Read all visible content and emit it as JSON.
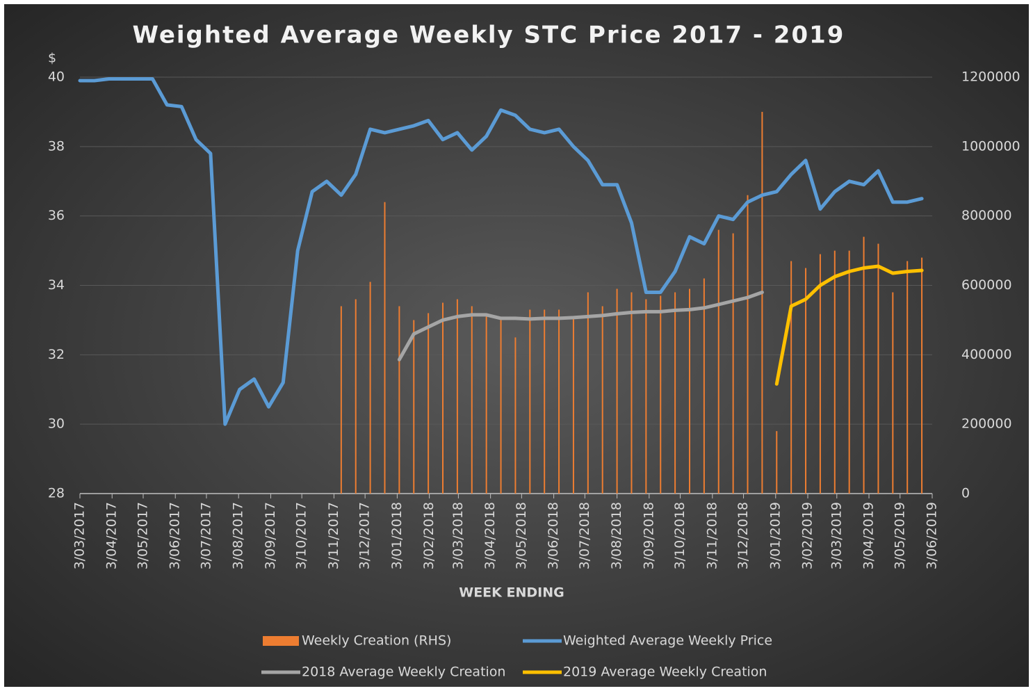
{
  "chart_data": {
    "type": "line",
    "title": "Weighted Average Weekly STC Price 2017 - 2019",
    "y_label": "$",
    "x_label": "WEEK ENDING",
    "x": [
      "3/03/2017",
      "17/03/2017",
      "31/03/2017",
      "14/04/2017",
      "28/04/2017",
      "12/05/2017",
      "26/05/2017",
      "9/06/2017",
      "23/06/2017",
      "7/07/2017",
      "21/07/2017",
      "4/08/2017",
      "18/08/2017",
      "1/09/2017",
      "15/09/2017",
      "29/09/2017",
      "13/10/2017",
      "27/10/2017",
      "10/11/2017",
      "24/11/2017",
      "8/12/2017",
      "22/12/2017",
      "5/01/2018",
      "19/01/2018",
      "2/02/2018",
      "16/02/2018",
      "2/03/2018",
      "16/03/2018",
      "30/03/2018",
      "13/04/2018",
      "27/04/2018",
      "11/05/2018",
      "25/05/2018",
      "8/06/2018",
      "22/06/2018",
      "6/07/2018",
      "20/07/2018",
      "3/08/2018",
      "17/08/2018",
      "31/08/2018",
      "14/09/2018",
      "28/09/2018",
      "12/10/2018",
      "26/10/2018",
      "9/11/2018",
      "23/11/2018",
      "7/12/2018",
      "21/12/2018",
      "4/01/2019",
      "18/01/2019",
      "1/02/2019",
      "15/02/2019",
      "1/03/2019",
      "15/03/2019",
      "29/03/2019",
      "12/04/2019",
      "26/04/2019",
      "10/05/2019",
      "24/05/2019"
    ],
    "xlim": [
      "3/03/2017",
      "3/06/2019"
    ],
    "xticks": [
      "3/03/2017",
      "3/04/2017",
      "3/05/2017",
      "3/06/2017",
      "3/07/2017",
      "3/08/2017",
      "3/09/2017",
      "3/10/2017",
      "3/11/2017",
      "3/12/2017",
      "3/01/2018",
      "3/02/2018",
      "3/03/2018",
      "3/04/2018",
      "3/05/2018",
      "3/06/2018",
      "3/07/2018",
      "3/08/2018",
      "3/09/2018",
      "3/10/2018",
      "3/11/2018",
      "3/12/2018",
      "3/01/2019",
      "3/02/2019",
      "3/03/2019",
      "3/04/2019",
      "3/05/2019",
      "3/06/2019"
    ],
    "ylim": [
      28,
      40
    ],
    "yticks": [
      28,
      30,
      32,
      34,
      36,
      38,
      40
    ],
    "y2lim": [
      0,
      1200000
    ],
    "y2ticks": [
      0,
      200000,
      400000,
      600000,
      800000,
      1000000,
      1200000
    ],
    "grid": true,
    "series": [
      {
        "name": "Weekly Creation (RHS)",
        "type": "bar",
        "axis": "y2",
        "color": "#ed7d31",
        "values": [
          null,
          null,
          null,
          null,
          null,
          null,
          null,
          null,
          null,
          null,
          null,
          null,
          null,
          null,
          null,
          null,
          null,
          null,
          540000,
          560000,
          610000,
          840000,
          540000,
          500000,
          520000,
          550000,
          560000,
          540000,
          510000,
          500000,
          450000,
          530000,
          530000,
          530000,
          510000,
          580000,
          540000,
          590000,
          580000,
          560000,
          570000,
          580000,
          590000,
          620000,
          760000,
          750000,
          860000,
          1100000,
          180000,
          670000,
          650000,
          690000,
          700000,
          700000,
          740000,
          720000,
          580000,
          670000,
          680000
        ]
      },
      {
        "name": "Weighted Average Weekly Price",
        "type": "line",
        "color": "#5b9bd5",
        "values": [
          39.9,
          39.9,
          39.95,
          39.95,
          39.95,
          39.95,
          39.2,
          39.15,
          38.2,
          37.8,
          30.0,
          31.0,
          31.3,
          30.5,
          31.2,
          35.0,
          36.7,
          37.0,
          36.6,
          37.2,
          38.5,
          38.4,
          38.5,
          38.6,
          38.75,
          38.2,
          38.4,
          37.9,
          38.3,
          39.05,
          38.9,
          38.5,
          38.4,
          38.5,
          38.0,
          37.6,
          36.9,
          36.9,
          35.8,
          33.8,
          33.8,
          34.4,
          35.4,
          35.2,
          36.0,
          35.9,
          36.4,
          36.6,
          36.7,
          37.2,
          37.6,
          36.2,
          36.7,
          37.0,
          36.9,
          37.3,
          36.4,
          36.4,
          36.5
        ]
      },
      {
        "name": "2018 Average Weekly Creation",
        "type": "line",
        "axis": "y2",
        "color": "#a5a5a5",
        "values": [
          null,
          null,
          null,
          null,
          null,
          null,
          null,
          null,
          null,
          null,
          null,
          null,
          null,
          null,
          null,
          null,
          null,
          null,
          null,
          null,
          null,
          null,
          386000,
          460000,
          480000,
          500000,
          510000,
          515000,
          515000,
          505000,
          505000,
          503000,
          505000,
          505000,
          507000,
          510000,
          513000,
          518000,
          522000,
          524000,
          524000,
          528000,
          530000,
          535000,
          545000,
          555000,
          565000,
          580000,
          null,
          null,
          null,
          null,
          null,
          null,
          null,
          null,
          null,
          null,
          null
        ]
      },
      {
        "name": "2019 Average Weekly Creation",
        "type": "line",
        "axis": "y2",
        "color": "#ffc000",
        "values": [
          null,
          null,
          null,
          null,
          null,
          null,
          null,
          null,
          null,
          null,
          null,
          null,
          null,
          null,
          null,
          null,
          null,
          null,
          null,
          null,
          null,
          null,
          null,
          null,
          null,
          null,
          null,
          null,
          null,
          null,
          null,
          null,
          null,
          null,
          null,
          null,
          null,
          null,
          null,
          null,
          null,
          null,
          null,
          null,
          null,
          null,
          null,
          null,
          316000,
          540000,
          560000,
          600000,
          625000,
          640000,
          650000,
          655000,
          635000,
          640000,
          643000
        ]
      }
    ]
  }
}
